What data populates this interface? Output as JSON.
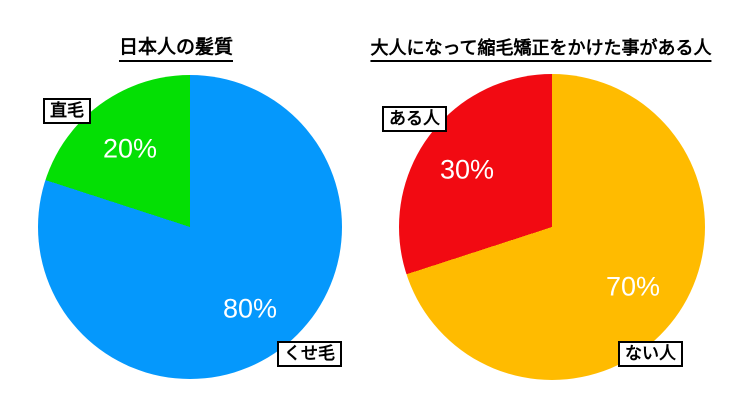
{
  "page": {
    "background_color": "#ffffff",
    "text_color": "#000000",
    "percent_label_color": "#ffffff",
    "callout_border_color": "#000000"
  },
  "chart_data": [
    {
      "type": "pie",
      "title": "日本人の髪質",
      "start_angle_deg": 0,
      "direction": "clockwise",
      "legend_position": "none",
      "label_style": "black-bordered white callout boxes outside slices, white percent labels inside slices",
      "slices": [
        {
          "label": "くせ毛",
          "value": 80,
          "pct_label": "80%",
          "color": "#0598fc"
        },
        {
          "label": "直毛",
          "value": 20,
          "pct_label": "20%",
          "color": "#04df04"
        }
      ]
    },
    {
      "type": "pie",
      "title": "大人になって縮毛矯正をかけた事がある人",
      "start_angle_deg": 0,
      "direction": "clockwise",
      "legend_position": "none",
      "label_style": "black-bordered white callout boxes outside slices, white percent labels inside slices",
      "slices": [
        {
          "label": "ない人",
          "value": 70,
          "pct_label": "70%",
          "color": "#ffbb00"
        },
        {
          "label": "ある人",
          "value": 30,
          "pct_label": "30%",
          "color": "#f20a12"
        }
      ]
    }
  ]
}
